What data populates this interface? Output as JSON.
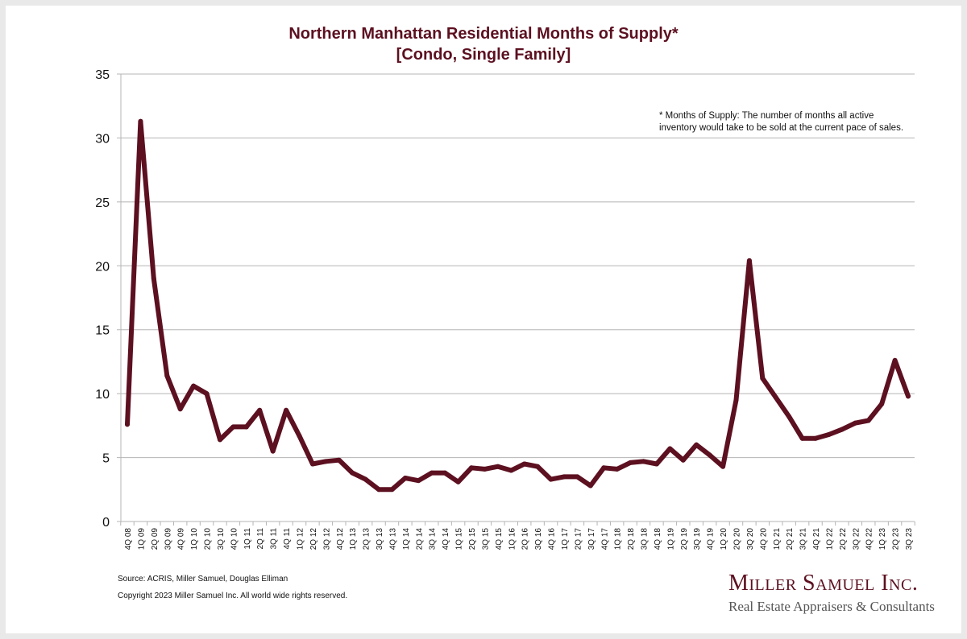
{
  "chart_data": {
    "type": "line",
    "title": "Northern Manhattan Residential Months of Supply*",
    "subtitle": "[Condo, Single Family]",
    "xlabel": "",
    "ylabel": "",
    "ylim": [
      0,
      35
    ],
    "yticks": [
      0,
      5,
      10,
      15,
      20,
      25,
      30,
      35
    ],
    "grid": true,
    "legend": "none",
    "line_color": "#5c1020",
    "categories": [
      "4Q 08",
      "1Q 09",
      "2Q 09",
      "3Q 09",
      "4Q 09",
      "1Q 10",
      "2Q 10",
      "3Q 10",
      "4Q 10",
      "1Q 11",
      "2Q 11",
      "3Q 11",
      "4Q 11",
      "1Q 12",
      "2Q 12",
      "3Q 12",
      "4Q 12",
      "1Q 13",
      "2Q 13",
      "3Q 13",
      "4Q 13",
      "1Q 14",
      "2Q 14",
      "3Q 14",
      "4Q 14",
      "1Q 15",
      "2Q 15",
      "3Q 15",
      "4Q 15",
      "1Q 16",
      "2Q 16",
      "3Q 16",
      "4Q 16",
      "1Q 17",
      "2Q 17",
      "3Q 17",
      "4Q 17",
      "1Q 18",
      "2Q 18",
      "3Q 18",
      "4Q 18",
      "1Q 19",
      "2Q 19",
      "3Q 19",
      "4Q 19",
      "1Q 20",
      "2Q 20",
      "3Q 20",
      "4Q 20",
      "1Q 21",
      "2Q 21",
      "3Q 21",
      "4Q 21",
      "1Q 22",
      "2Q 22",
      "3Q 22",
      "4Q 22",
      "1Q 23",
      "2Q 23",
      "3Q 23"
    ],
    "series": [
      {
        "name": "Months of Supply",
        "values": [
          7.6,
          31.3,
          19.0,
          11.4,
          8.8,
          10.6,
          10.0,
          6.4,
          7.4,
          7.4,
          8.7,
          5.5,
          8.7,
          6.7,
          4.5,
          4.7,
          4.8,
          3.8,
          3.3,
          2.5,
          2.5,
          3.4,
          3.2,
          3.8,
          3.8,
          3.1,
          4.2,
          4.1,
          4.3,
          4.0,
          4.5,
          4.3,
          3.3,
          3.5,
          3.5,
          2.8,
          4.2,
          4.1,
          4.6,
          4.7,
          4.5,
          5.7,
          4.8,
          6.0,
          5.2,
          4.3,
          9.5,
          20.4,
          11.2,
          9.7,
          8.2,
          6.5,
          6.5,
          6.8,
          7.2,
          7.7,
          7.9,
          9.2,
          12.6,
          9.8
        ]
      }
    ],
    "annotation": "* Months of Supply: The number of months all active inventory would take to be sold at the current pace of sales."
  },
  "footer": {
    "source": "Source: ACRIS, Miller Samuel, Douglas Elliman",
    "copyright": "Copyright 2023 Miller Samuel Inc.  All world wide rights reserved."
  },
  "logo": {
    "name": "Miller Samuel Inc.",
    "tagline": "Real Estate Appraisers & Consultants"
  }
}
